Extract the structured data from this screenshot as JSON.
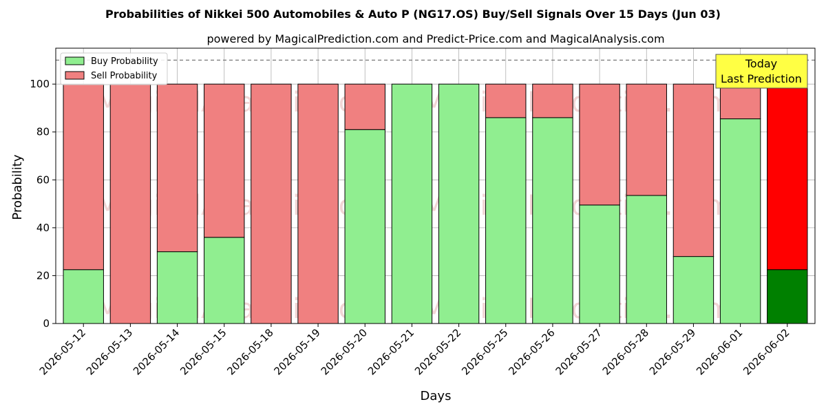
{
  "chart_data": {
    "type": "bar",
    "stacked": true,
    "title": "Probabilities of Nikkei 500 Automobiles & Auto P (NG17.OS) Buy/Sell Signals Over 15 Days (Jun 03)",
    "subtitle": "powered by MagicalPrediction.com and Predict-Price.com and MagicalAnalysis.com",
    "xlabel": "Days",
    "ylabel": "Probability",
    "ylim": [
      0,
      115
    ],
    "yticks": [
      0,
      20,
      40,
      60,
      80,
      100
    ],
    "grid": true,
    "legend_position": "top-left",
    "reference_line": 110,
    "categories": [
      "2026-05-12",
      "2026-05-13",
      "2026-05-14",
      "2026-05-15",
      "2026-05-18",
      "2026-05-19",
      "2026-05-20",
      "2026-05-21",
      "2026-05-22",
      "2026-05-25",
      "2026-05-26",
      "2026-05-27",
      "2026-05-28",
      "2026-05-29",
      "2026-06-01",
      "2026-06-02"
    ],
    "series": [
      {
        "name": "Buy Probability",
        "color": "#90ee90",
        "highlight_color": "#008000",
        "values": [
          22.5,
          0,
          30,
          36,
          0,
          0,
          81,
          100,
          100,
          86,
          86,
          49.5,
          53.5,
          28,
          85.5,
          22.5
        ]
      },
      {
        "name": "Sell Probability",
        "color": "#f08080",
        "highlight_color": "#ff0000",
        "values": [
          77.5,
          100,
          70,
          64,
          100,
          100,
          19,
          0,
          0,
          14,
          14,
          50.5,
          46.5,
          72,
          14.5,
          77.5
        ]
      }
    ],
    "highlight_index": 15,
    "annotation": {
      "lines": [
        "Today",
        "Last Prediction"
      ],
      "background": "#ffff44"
    },
    "watermarks": [
      "MagicalAnalysis.com",
      "MagicalPrediction.com"
    ]
  }
}
